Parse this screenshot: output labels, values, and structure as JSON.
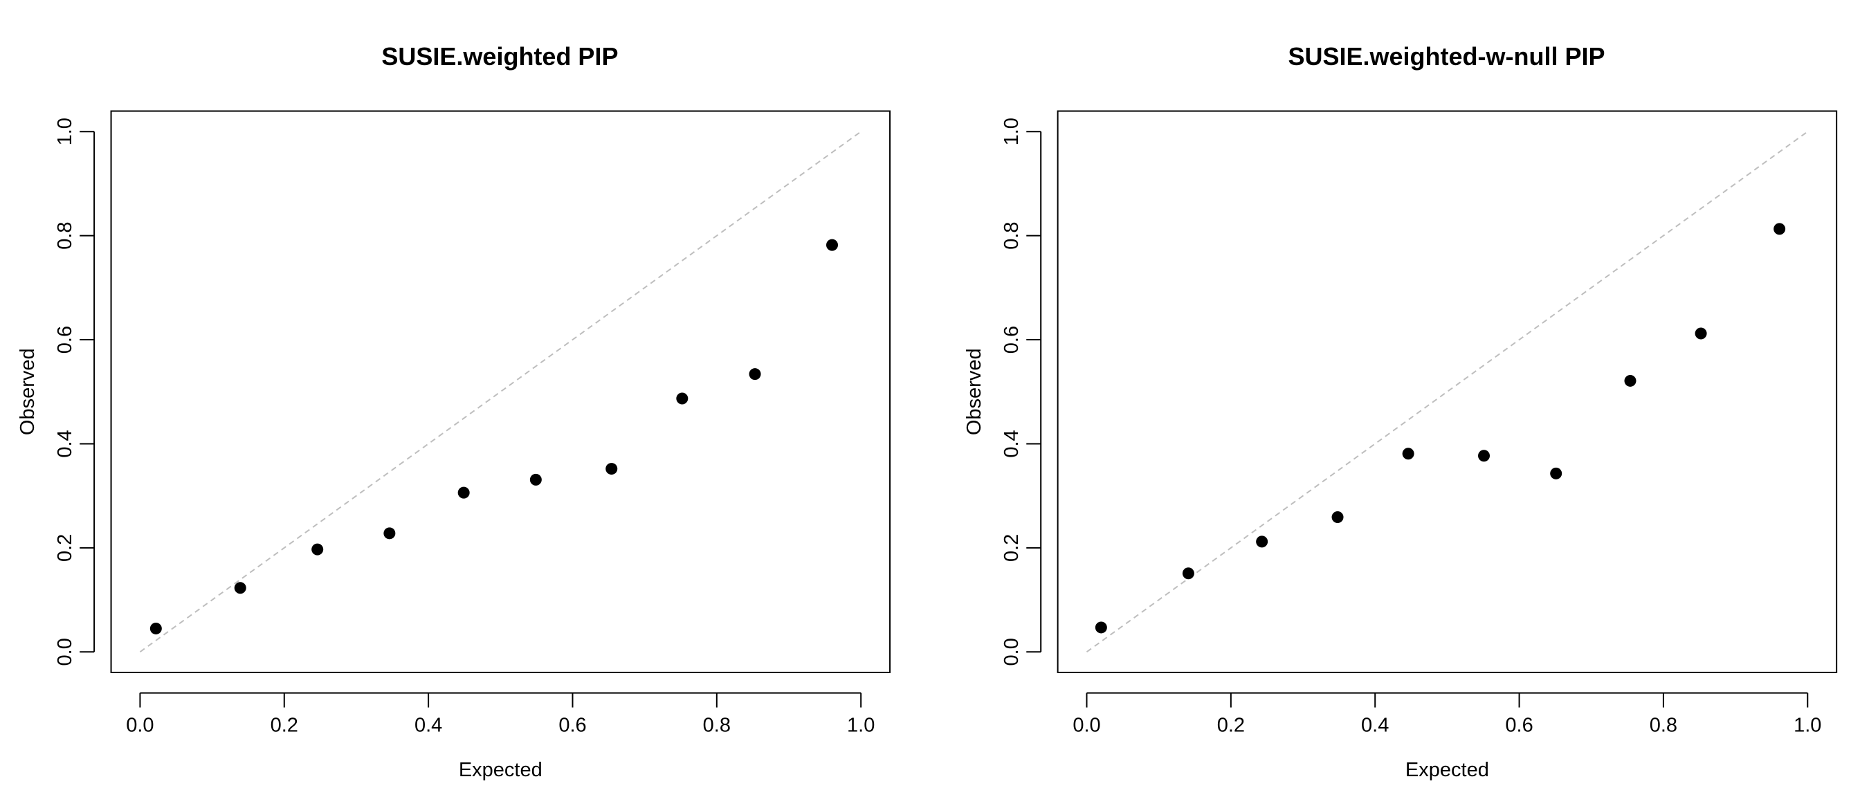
{
  "chart_data": [
    {
      "type": "scatter",
      "title": "SUSIE.weighted PIP",
      "xlabel": "Expected",
      "ylabel": "Observed",
      "xlim": [
        0,
        1
      ],
      "ylim": [
        0,
        1
      ],
      "x_ticks": [
        "0.0",
        "0.2",
        "0.4",
        "0.6",
        "0.8",
        "1.0"
      ],
      "y_ticks": [
        "0.0",
        "0.2",
        "0.4",
        "0.6",
        "0.8",
        "1.0"
      ],
      "reference_line": {
        "style": "dashed",
        "color": "#bebebe",
        "from": [
          0,
          0
        ],
        "to": [
          1,
          1
        ]
      },
      "points": [
        {
          "x": 0.022,
          "y": 0.045
        },
        {
          "x": 0.139,
          "y": 0.123
        },
        {
          "x": 0.246,
          "y": 0.197
        },
        {
          "x": 0.346,
          "y": 0.228
        },
        {
          "x": 0.449,
          "y": 0.306
        },
        {
          "x": 0.549,
          "y": 0.331
        },
        {
          "x": 0.654,
          "y": 0.352
        },
        {
          "x": 0.752,
          "y": 0.487
        },
        {
          "x": 0.853,
          "y": 0.534
        },
        {
          "x": 0.96,
          "y": 0.782
        }
      ],
      "grid": false,
      "color": "#000000"
    },
    {
      "type": "scatter",
      "title": "SUSIE.weighted-w-null PIP",
      "xlabel": "Expected",
      "ylabel": "Observed",
      "xlim": [
        0,
        1
      ],
      "ylim": [
        0,
        1
      ],
      "x_ticks": [
        "0.0",
        "0.2",
        "0.4",
        "0.6",
        "0.8",
        "1.0"
      ],
      "y_ticks": [
        "0.0",
        "0.2",
        "0.4",
        "0.6",
        "0.8",
        "1.0"
      ],
      "reference_line": {
        "style": "dashed",
        "color": "#bebebe",
        "from": [
          0,
          0
        ],
        "to": [
          1,
          1
        ]
      },
      "points": [
        {
          "x": 0.02,
          "y": 0.047
        },
        {
          "x": 0.141,
          "y": 0.151
        },
        {
          "x": 0.243,
          "y": 0.212
        },
        {
          "x": 0.348,
          "y": 0.259
        },
        {
          "x": 0.446,
          "y": 0.381
        },
        {
          "x": 0.551,
          "y": 0.377
        },
        {
          "x": 0.651,
          "y": 0.343
        },
        {
          "x": 0.754,
          "y": 0.521
        },
        {
          "x": 0.852,
          "y": 0.612
        },
        {
          "x": 0.961,
          "y": 0.813
        }
      ],
      "grid": false,
      "color": "#000000"
    }
  ]
}
